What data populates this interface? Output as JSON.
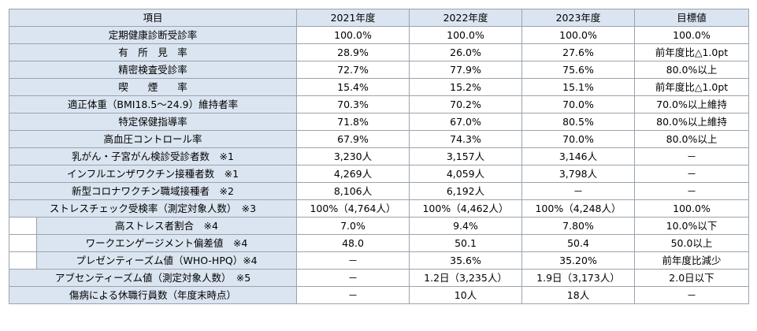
{
  "header": {
    "item": "項目",
    "y2021": "2021年度",
    "y2022": "2022年度",
    "y2023": "2023年度",
    "target": "目標値"
  },
  "rows": [
    {
      "item": "定期健康診断受診率",
      "y2021": "100.0%",
      "y2022": "100.0%",
      "y2023": "100.0%",
      "target": "100.0%"
    },
    {
      "item": "有　所　見　率",
      "y2021": "28.9%",
      "y2022": "26.0%",
      "y2023": "27.6%",
      "target": "前年度比△1.0pt"
    },
    {
      "item": "精密検査受診率",
      "y2021": "72.7%",
      "y2022": "77.9%",
      "y2023": "75.6%",
      "target": "80.0%以上"
    },
    {
      "item": "喫　　煙　　率",
      "y2021": "15.4%",
      "y2022": "15.2%",
      "y2023": "15.1%",
      "target": "前年度比△1.0pt"
    },
    {
      "item": "適正体重（BMI18.5～24.9）維持者率",
      "y2021": "70.3%",
      "y2022": "70.2%",
      "y2023": "70.0%",
      "target": "70.0%以上維持"
    },
    {
      "item": "特定保健指導率",
      "y2021": "71.8%",
      "y2022": "67.0%",
      "y2023": "80.5%",
      "target": "80.0%以上維持"
    },
    {
      "item": "高血圧コントロール率",
      "y2021": "67.9%",
      "y2022": "74.3%",
      "y2023": "70.0%",
      "target": "80.0%以上"
    },
    {
      "item": "乳がん・子宮がん検診受診者数　※1",
      "y2021": "3,230人",
      "y2022": "3,157人",
      "y2023": "3,146人",
      "target": "－"
    },
    {
      "item": "インフルエンザワクチン接種者数　※1",
      "y2021": "4,269人",
      "y2022": "4,059人",
      "y2023": "3,798人",
      "target": "－"
    },
    {
      "item": "新型コロナワクチン職域接種者　※2",
      "y2021": "8,106人",
      "y2022": "6,192人",
      "y2023": "－",
      "target": "－"
    },
    {
      "item": "ストレスチェック受検率（測定対象人数）　※3",
      "y2021": "100%（4,764人）",
      "y2022": "100%（4,462人）",
      "y2023": "100%（4,248人）",
      "target": "100.0%"
    },
    {
      "item": "高ストレス者割合　※4",
      "y2021": "7.0%",
      "y2022": "9.4%",
      "y2023": "7.80%",
      "target": "10.0%以下"
    },
    {
      "item": "ワークエンゲージメント偏差値　※4",
      "y2021": "48.0",
      "y2022": "50.1",
      "y2023": "50.4",
      "target": "50.0以上"
    },
    {
      "item": "プレゼンティーズム値（WHO-HPQ）※4",
      "y2021": "－",
      "y2022": "35.6%",
      "y2023": "35.20%",
      "target": "前年度比減少"
    },
    {
      "item": "アブセンティーズム値（測定対象人数）　※5",
      "y2021": "－",
      "y2022": "1.2日（3,235人）",
      "y2023": "1.9日（3,173人）",
      "target": "2.0日以下"
    },
    {
      "item": "傷病による休職行員数（年度末時点）",
      "y2021": "－",
      "y2022": "10人",
      "y2023": "18人",
      "target": "－"
    }
  ]
}
